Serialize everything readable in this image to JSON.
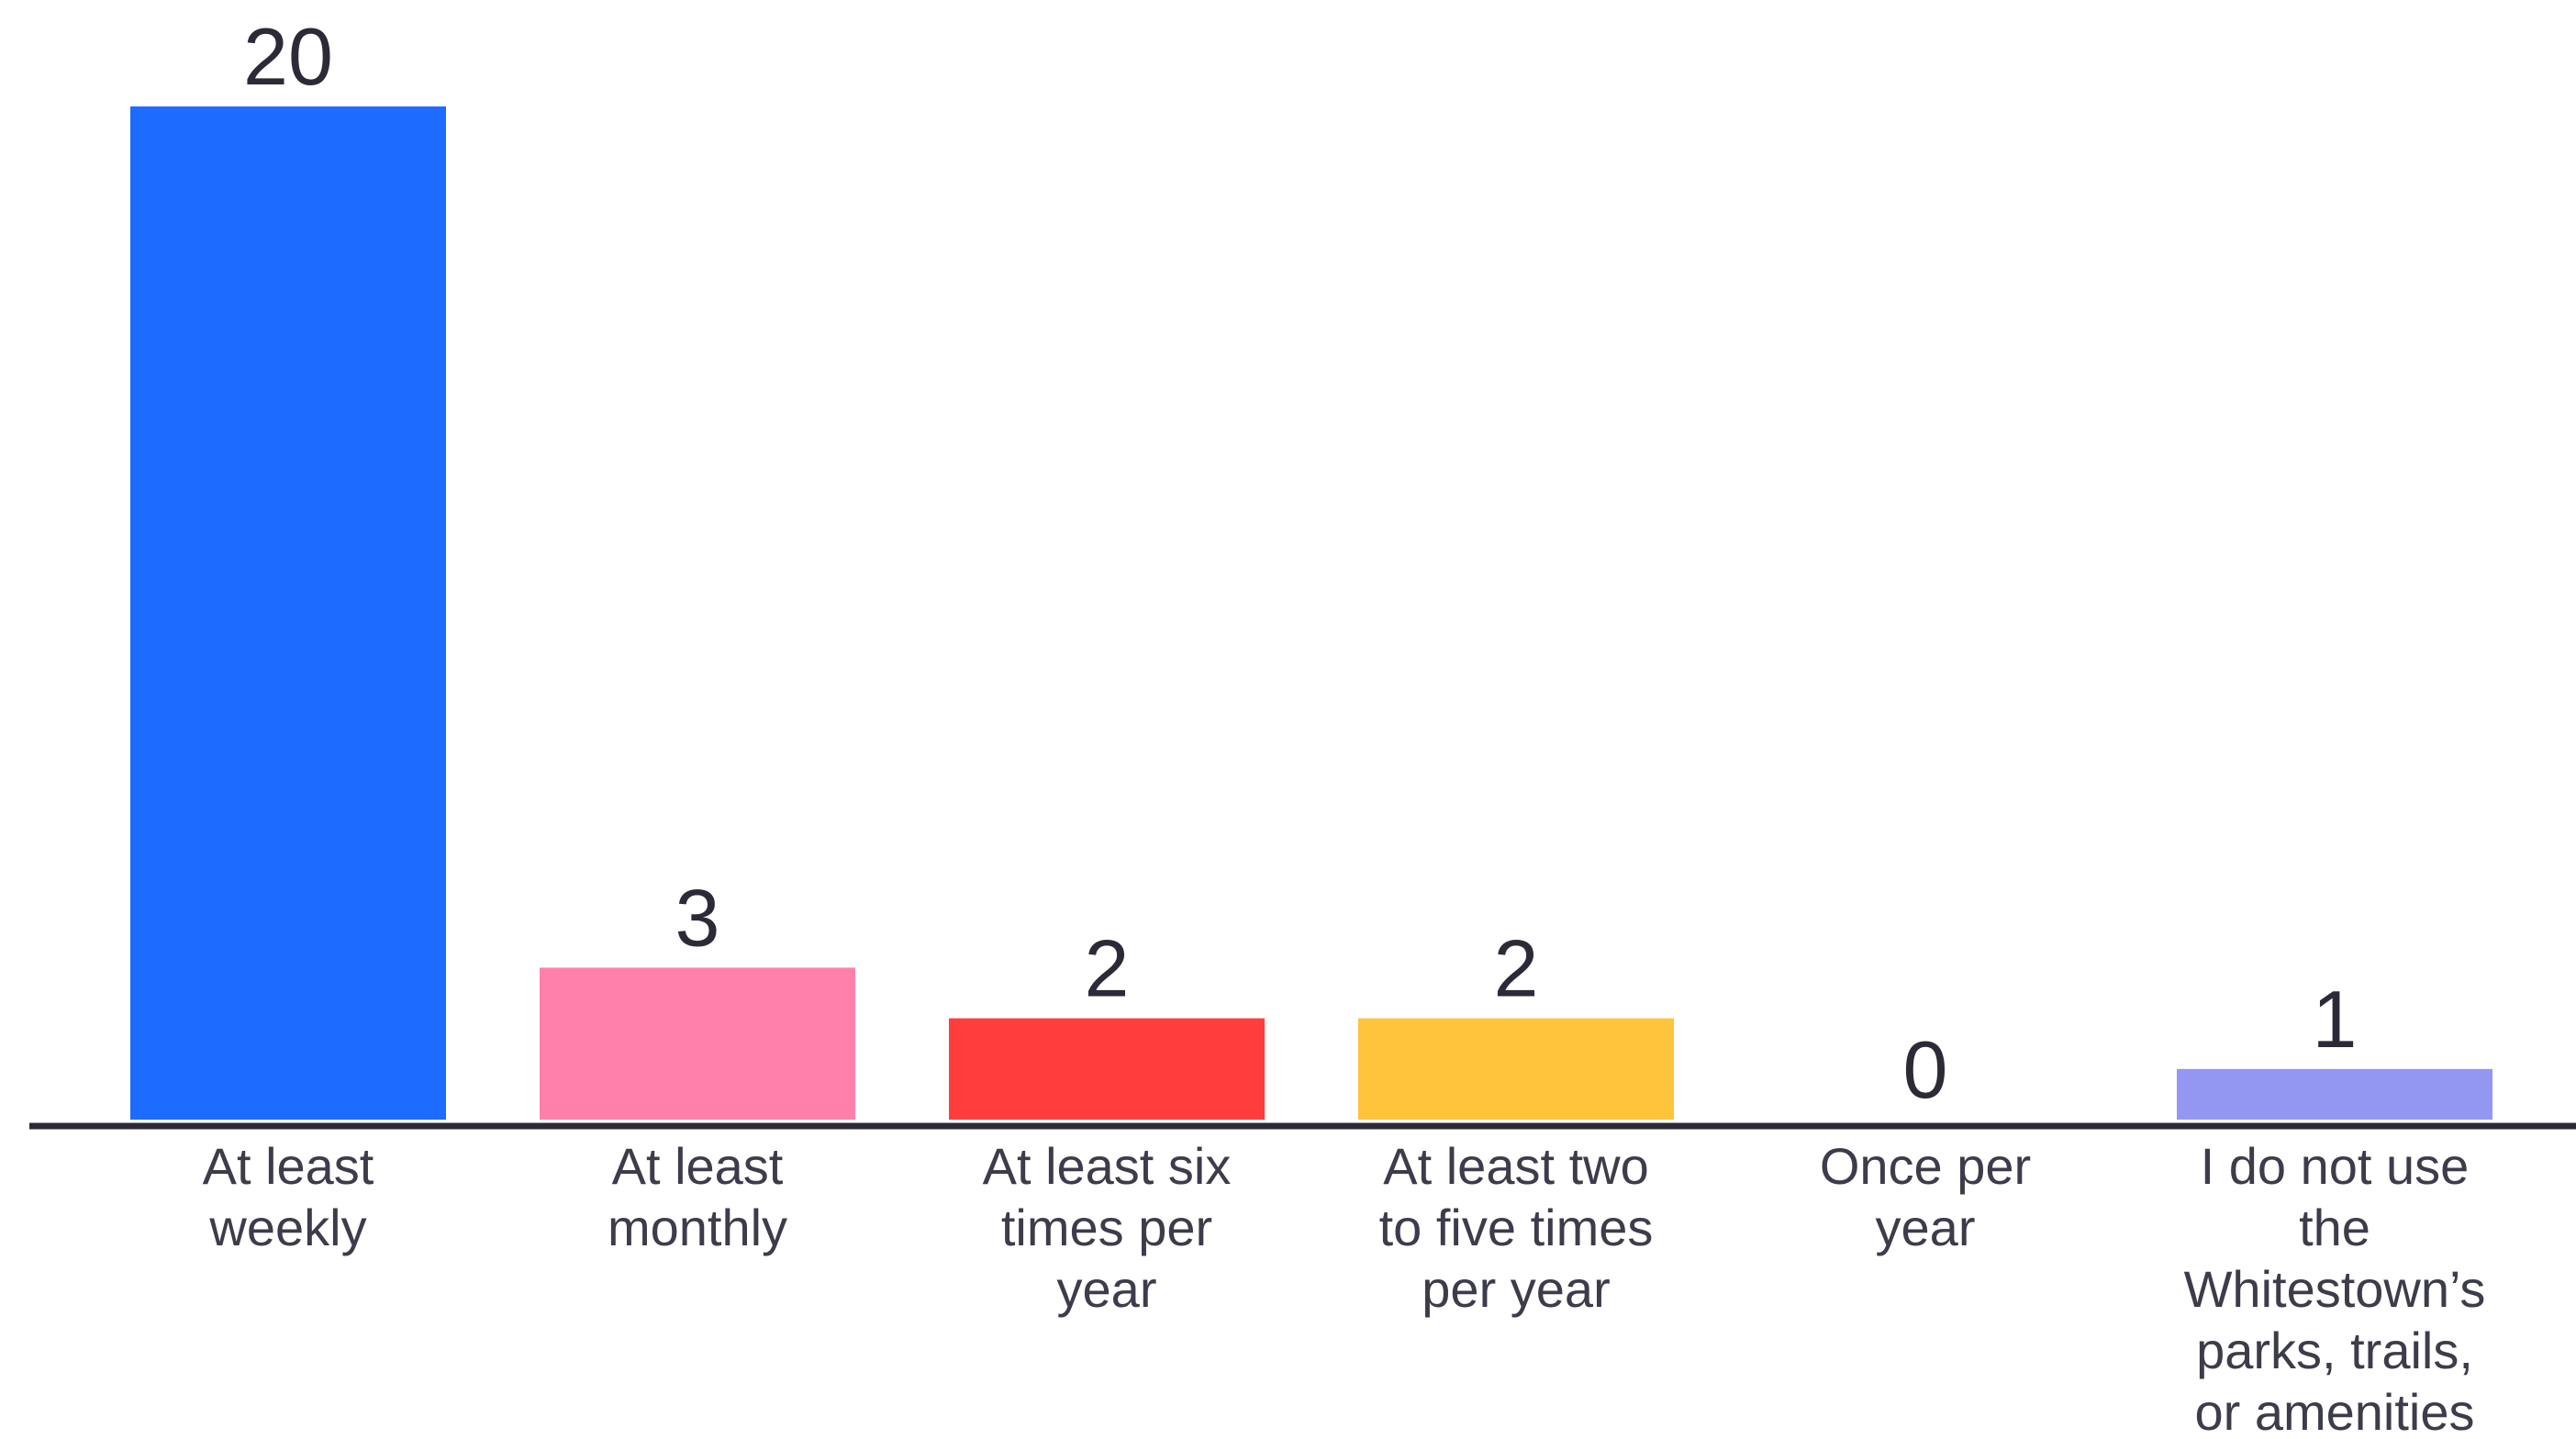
{
  "chart_data": {
    "type": "bar",
    "categories": [
      [
        "At least",
        "weekly"
      ],
      [
        "At least",
        "monthly"
      ],
      [
        "At least six",
        "times per",
        "year"
      ],
      [
        "At least two",
        "to five times",
        "per year"
      ],
      [
        "Once per",
        "year"
      ],
      [
        "I do not use",
        "the",
        "Whitestown’s",
        "parks, trails,",
        "or amenities"
      ]
    ],
    "values": [
      20,
      3,
      2,
      2,
      0,
      1
    ],
    "colors": [
      "#1e6bff",
      "#ff80ab",
      "#ff3d3d",
      "#fdc43c",
      "#ffffff",
      "#9397f2"
    ],
    "axis_color": "#2b2b38",
    "ylim": [
      0,
      20
    ],
    "grid": false,
    "legend": "none",
    "title": "",
    "xlabel": "",
    "ylabel": ""
  }
}
